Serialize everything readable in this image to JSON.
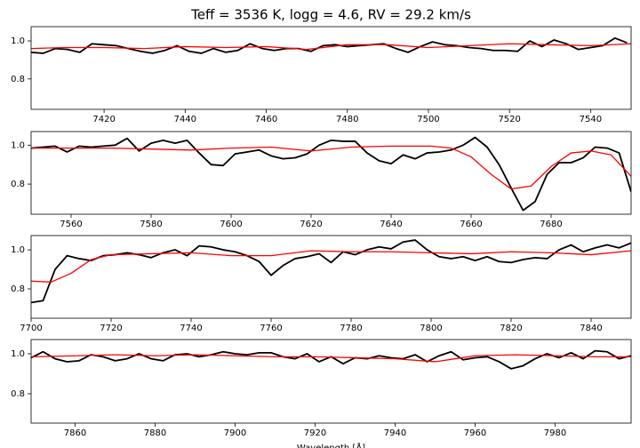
{
  "chart_data": [
    {
      "type": "line",
      "title": "Teff = 3536 K, logg = 4.6, RV = 29.2 km/s",
      "xlim": [
        7402,
        7550
      ],
      "ylim": [
        0.64,
        1.075
      ],
      "xticks": [
        7420,
        7440,
        7460,
        7480,
        7500,
        7520,
        7540
      ],
      "yticks": [
        0.8,
        {
          "value": 1.0,
          "label": "1.0"
        }
      ],
      "series": [
        {
          "color": "#000000",
          "x": [
            7402,
            7405,
            7408,
            7411,
            7414,
            7417,
            7420,
            7423,
            7426,
            7429,
            7432,
            7435,
            7438,
            7441,
            7444,
            7447,
            7450,
            7453,
            7456,
            7459,
            7462,
            7465,
            7468,
            7471,
            7474,
            7477,
            7480,
            7483,
            7486,
            7489,
            7492,
            7495,
            7498,
            7501,
            7504,
            7507,
            7510,
            7513,
            7516,
            7519,
            7522,
            7525,
            7528,
            7531,
            7534,
            7537,
            7540,
            7543,
            7546,
            7549
          ],
          "values": [
            0.94,
            0.935,
            0.96,
            0.955,
            0.94,
            0.985,
            0.98,
            0.975,
            0.96,
            0.945,
            0.935,
            0.95,
            0.975,
            0.945,
            0.935,
            0.96,
            0.94,
            0.95,
            0.985,
            0.96,
            0.95,
            0.96,
            0.96,
            0.945,
            0.975,
            0.98,
            0.97,
            0.975,
            0.98,
            0.985,
            0.96,
            0.94,
            0.97,
            0.995,
            0.98,
            0.975,
            0.965,
            0.96,
            0.95,
            0.95,
            0.945,
            1.0,
            0.97,
            1.005,
            0.985,
            0.955,
            0.965,
            0.975,
            1.015,
            0.99
          ]
        },
        {
          "color": "#ff0000",
          "x": [
            7402,
            7410,
            7420,
            7430,
            7440,
            7450,
            7460,
            7470,
            7480,
            7490,
            7500,
            7510,
            7520,
            7530,
            7540,
            7550
          ],
          "values": [
            0.96,
            0.965,
            0.965,
            0.96,
            0.97,
            0.965,
            0.97,
            0.955,
            0.98,
            0.98,
            0.965,
            0.975,
            0.985,
            0.98,
            0.975,
            0.985
          ]
        }
      ]
    },
    {
      "type": "line",
      "xlim": [
        7550,
        7700
      ],
      "ylim": [
        0.645,
        1.07
      ],
      "xticks": [
        7560,
        7580,
        7600,
        7620,
        7640,
        7660,
        7680
      ],
      "yticks": [
        0.8,
        {
          "value": 1.0,
          "label": "1.0"
        }
      ],
      "series": [
        {
          "color": "#000000",
          "x": [
            7550,
            7553,
            7556,
            7559,
            7562,
            7565,
            7568,
            7571,
            7574,
            7577,
            7580,
            7583,
            7586,
            7589,
            7592,
            7595,
            7598,
            7601,
            7604,
            7607,
            7610,
            7613,
            7616,
            7619,
            7622,
            7625,
            7628,
            7631,
            7634,
            7637,
            7640,
            7643,
            7646,
            7649,
            7652,
            7655,
            7658,
            7661,
            7664,
            7667,
            7670,
            7673,
            7676,
            7679,
            7682,
            7685,
            7688,
            7691,
            7694,
            7697,
            7700
          ],
          "values": [
            0.985,
            0.99,
            0.995,
            0.965,
            0.995,
            0.99,
            0.995,
            1.0,
            1.035,
            0.97,
            1.01,
            1.025,
            1.01,
            1.025,
            0.96,
            0.9,
            0.895,
            0.955,
            0.965,
            0.975,
            0.945,
            0.93,
            0.935,
            0.955,
            1.0,
            1.025,
            1.02,
            1.02,
            0.96,
            0.92,
            0.905,
            0.95,
            0.93,
            0.96,
            0.965,
            0.975,
            1.0,
            1.04,
            0.99,
            0.9,
            0.78,
            0.665,
            0.71,
            0.85,
            0.91,
            0.91,
            0.935,
            0.99,
            0.985,
            0.96,
            0.76
          ]
        },
        {
          "color": "#ff0000",
          "x": [
            7550,
            7560,
            7570,
            7580,
            7590,
            7600,
            7610,
            7620,
            7630,
            7640,
            7650,
            7655,
            7660,
            7665,
            7670,
            7675,
            7680,
            7685,
            7690,
            7695,
            7700
          ],
          "values": [
            0.985,
            0.985,
            0.985,
            0.98,
            0.975,
            0.985,
            0.99,
            0.97,
            0.99,
            0.995,
            0.995,
            0.985,
            0.94,
            0.85,
            0.775,
            0.79,
            0.89,
            0.96,
            0.97,
            0.95,
            0.84
          ]
        }
      ]
    },
    {
      "type": "line",
      "xlim": [
        7700,
        7850
      ],
      "ylim": [
        0.65,
        1.073
      ],
      "xticks": [
        7700,
        7720,
        7740,
        7760,
        7780,
        7800,
        7820,
        7840
      ],
      "yticks": [
        0.8,
        {
          "value": 1.0,
          "label": "1.0"
        }
      ],
      "series": [
        {
          "color": "#000000",
          "x": [
            7700,
            7703,
            7706,
            7709,
            7712,
            7715,
            7718,
            7721,
            7724,
            7727,
            7730,
            7733,
            7736,
            7739,
            7742,
            7745,
            7748,
            7751,
            7754,
            7757,
            7760,
            7763,
            7766,
            7769,
            7772,
            7775,
            7778,
            7781,
            7784,
            7787,
            7790,
            7793,
            7796,
            7799,
            7802,
            7805,
            7808,
            7811,
            7814,
            7817,
            7820,
            7823,
            7826,
            7829,
            7832,
            7835,
            7838,
            7841,
            7844,
            7847,
            7850
          ],
          "values": [
            0.73,
            0.74,
            0.9,
            0.97,
            0.955,
            0.945,
            0.97,
            0.975,
            0.985,
            0.975,
            0.96,
            0.985,
            1.0,
            0.97,
            1.02,
            1.015,
            1.0,
            0.99,
            0.97,
            0.94,
            0.87,
            0.92,
            0.955,
            0.965,
            0.98,
            0.935,
            0.99,
            0.975,
            1.0,
            1.015,
            1.005,
            1.04,
            1.05,
            1.0,
            0.965,
            0.955,
            0.965,
            0.945,
            0.965,
            0.94,
            0.935,
            0.95,
            0.96,
            0.955,
            1.0,
            1.025,
            0.99,
            1.01,
            1.025,
            1.01,
            1.035
          ]
        },
        {
          "color": "#ff0000",
          "x": [
            7700,
            7705,
            7710,
            7715,
            7720,
            7730,
            7740,
            7750,
            7760,
            7770,
            7780,
            7790,
            7800,
            7810,
            7820,
            7830,
            7840,
            7850
          ],
          "values": [
            0.84,
            0.835,
            0.88,
            0.95,
            0.975,
            0.98,
            0.985,
            0.97,
            0.97,
            0.995,
            0.99,
            0.99,
            0.985,
            0.98,
            0.99,
            0.985,
            0.975,
            0.995
          ]
        }
      ]
    },
    {
      "type": "line",
      "xlabel": "Wavelength [Å]",
      "xlim": [
        7849,
        7999
      ],
      "ylim": [
        0.653,
        1.071
      ],
      "xticks": [
        7860,
        7880,
        7900,
        7920,
        7940,
        7960,
        7980
      ],
      "yticks": [
        0.8,
        {
          "value": 1.0,
          "label": "1.0"
        }
      ],
      "series": [
        {
          "color": "#000000",
          "x": [
            7849,
            7852,
            7855,
            7858,
            7861,
            7864,
            7867,
            7870,
            7873,
            7876,
            7879,
            7882,
            7885,
            7888,
            7891,
            7894,
            7897,
            7900,
            7903,
            7906,
            7909,
            7912,
            7915,
            7918,
            7921,
            7924,
            7927,
            7930,
            7933,
            7936,
            7939,
            7942,
            7945,
            7948,
            7951,
            7954,
            7957,
            7960,
            7963,
            7966,
            7969,
            7972,
            7975,
            7978,
            7981,
            7984,
            7987,
            7990,
            7993,
            7996,
            7999
          ],
          "values": [
            0.98,
            1.01,
            0.975,
            0.96,
            0.965,
            0.995,
            0.985,
            0.965,
            0.975,
            1.0,
            0.975,
            0.965,
            0.995,
            1.0,
            0.985,
            0.995,
            1.01,
            1.0,
            0.995,
            1.005,
            1.005,
            0.985,
            0.975,
            1.0,
            0.96,
            0.985,
            0.95,
            0.98,
            0.975,
            0.99,
            0.98,
            0.975,
            0.995,
            0.96,
            0.99,
            1.01,
            0.97,
            0.98,
            0.985,
            0.96,
            0.925,
            0.94,
            0.975,
            1.0,
            0.98,
            1.005,
            0.975,
            1.015,
            1.01,
            0.975,
            0.99
          ]
        },
        {
          "color": "#ff0000",
          "x": [
            7849,
            7860,
            7870,
            7880,
            7890,
            7900,
            7910,
            7920,
            7930,
            7940,
            7950,
            7960,
            7970,
            7980,
            7990,
            7999
          ],
          "values": [
            0.985,
            0.99,
            0.995,
            0.99,
            0.995,
            0.99,
            0.985,
            0.985,
            0.98,
            0.975,
            0.96,
            0.99,
            0.995,
            0.99,
            0.985,
            0.985
          ]
        }
      ]
    }
  ]
}
